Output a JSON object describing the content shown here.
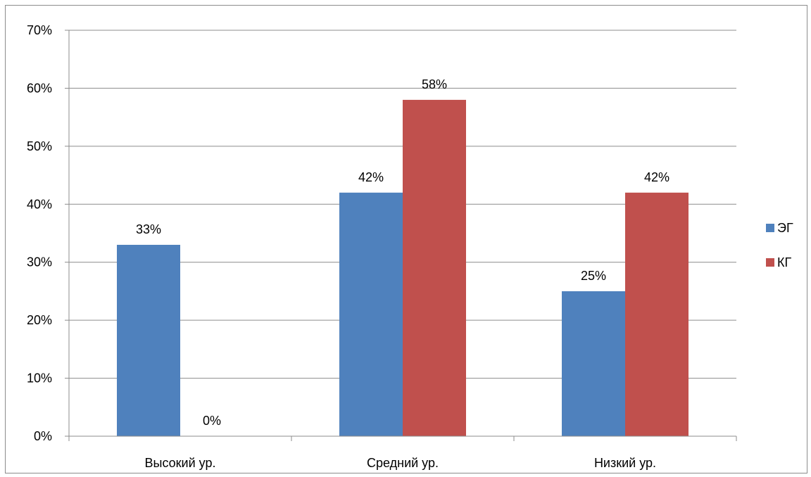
{
  "chart_data": {
    "type": "bar",
    "categories": [
      "Высокий ур.",
      "Средний ур.",
      "Низкий ур."
    ],
    "series": [
      {
        "name": "ЭГ",
        "values": [
          33,
          42,
          25
        ],
        "labels": [
          "33%",
          "42%",
          "25%"
        ],
        "color": "#4f81bd"
      },
      {
        "name": "КГ",
        "values": [
          0,
          58,
          42
        ],
        "labels": [
          "0%",
          "58%",
          "42%"
        ],
        "color": "#c0504d"
      }
    ],
    "yticks": [
      "0%",
      "10%",
      "20%",
      "30%",
      "40%",
      "50%",
      "60%",
      "70%"
    ],
    "ylim": [
      0,
      70
    ],
    "ystep": 10,
    "grid": true,
    "legend_position": "right"
  }
}
